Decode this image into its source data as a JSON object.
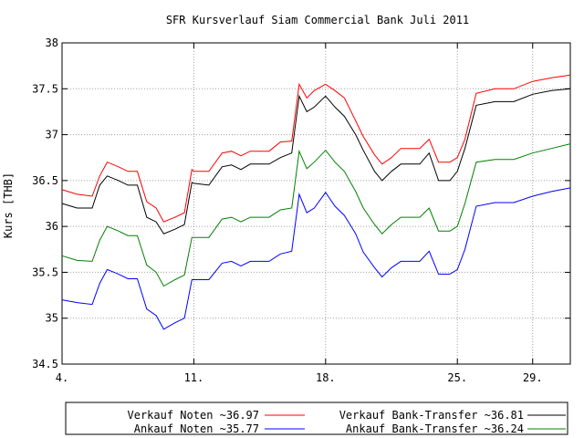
{
  "chart_data": {
    "type": "line",
    "title": "SFR Kursverlauf Siam Commercial Bank Juli 2011",
    "xlabel": "",
    "ylabel": "Kurs [THB]",
    "ylim": [
      34.5,
      38
    ],
    "y_ticks": [
      34.5,
      35,
      35.5,
      36,
      36.5,
      37,
      37.5,
      38
    ],
    "y_tick_labels": [
      "34.5",
      "35",
      "35.5",
      "36",
      "36.5",
      "37",
      "37.5",
      "38"
    ],
    "xlim": [
      4,
      31
    ],
    "x_ticks": [
      4,
      11,
      18,
      25,
      29
    ],
    "x_tick_labels": [
      "4.",
      "11.",
      "18.",
      "25.",
      "29."
    ],
    "grid": true,
    "legend_position": "bottom",
    "series": [
      {
        "name": "Verkauf Noten ~36.97",
        "color": "#ff0000",
        "x": [
          4,
          4.8,
          5.6,
          6,
          6.4,
          7,
          7.5,
          8,
          8.5,
          9,
          9.4,
          10,
          10.5,
          10.9,
          11,
          11.8,
          12.5,
          13,
          13.5,
          14,
          15,
          15.6,
          16.2,
          16.6,
          17,
          17.4,
          18,
          18.5,
          19,
          19.6,
          20,
          20.6,
          21,
          21.5,
          22,
          23,
          23.5,
          24,
          24.6,
          25,
          25.4,
          26,
          27,
          28,
          29,
          30,
          31
        ],
        "y": [
          36.4,
          36.35,
          36.33,
          36.55,
          36.7,
          36.65,
          36.6,
          36.6,
          36.27,
          36.2,
          36.05,
          36.1,
          36.15,
          36.62,
          36.6,
          36.6,
          36.8,
          36.82,
          36.77,
          36.82,
          36.82,
          36.92,
          36.93,
          37.55,
          37.4,
          37.48,
          37.55,
          37.48,
          37.4,
          37.15,
          36.98,
          36.78,
          36.68,
          36.75,
          36.85,
          36.85,
          36.95,
          36.7,
          36.7,
          36.75,
          36.95,
          37.45,
          37.5,
          37.5,
          37.58,
          37.62,
          37.65
        ]
      },
      {
        "name": "Verkauf Bank-Transfer ~36.81",
        "color": "#000000",
        "x": [
          4,
          4.8,
          5.6,
          6,
          6.4,
          7,
          7.5,
          8,
          8.5,
          9,
          9.4,
          10,
          10.5,
          10.9,
          11,
          11.8,
          12.5,
          13,
          13.5,
          14,
          15,
          15.6,
          16.2,
          16.6,
          17,
          17.4,
          18,
          18.5,
          19,
          19.6,
          20,
          20.6,
          21,
          21.5,
          22,
          23,
          23.5,
          24,
          24.6,
          25,
          25.4,
          26,
          27,
          28,
          29,
          30,
          31
        ],
        "y": [
          36.25,
          36.2,
          36.2,
          36.45,
          36.55,
          36.5,
          36.45,
          36.45,
          36.1,
          36.05,
          35.92,
          35.97,
          36.02,
          36.48,
          36.47,
          36.45,
          36.65,
          36.67,
          36.62,
          36.68,
          36.68,
          36.75,
          36.8,
          37.42,
          37.25,
          37.3,
          37.42,
          37.3,
          37.2,
          37.0,
          36.83,
          36.6,
          36.5,
          36.6,
          36.68,
          36.68,
          36.8,
          36.5,
          36.5,
          36.6,
          36.85,
          37.32,
          37.36,
          37.36,
          37.44,
          37.48,
          37.5
        ]
      },
      {
        "name": "Ankauf Noten ~35.77",
        "color": "#0000ff",
        "x": [
          4,
          4.8,
          5.6,
          6,
          6.4,
          7,
          7.5,
          8,
          8.5,
          9,
          9.4,
          10,
          10.5,
          10.9,
          11,
          11.8,
          12.5,
          13,
          13.5,
          14,
          15,
          15.6,
          16.2,
          16.6,
          17,
          17.4,
          18,
          18.5,
          19,
          19.6,
          20,
          20.6,
          21,
          21.5,
          22,
          23,
          23.5,
          24,
          24.6,
          25,
          25.4,
          26,
          27,
          28,
          29,
          30,
          31
        ],
        "y": [
          35.2,
          35.17,
          35.15,
          35.38,
          35.53,
          35.48,
          35.43,
          35.43,
          35.1,
          35.03,
          34.88,
          34.95,
          35.0,
          35.42,
          35.42,
          35.42,
          35.6,
          35.62,
          35.57,
          35.62,
          35.62,
          35.7,
          35.73,
          36.35,
          36.15,
          36.2,
          36.37,
          36.22,
          36.12,
          35.92,
          35.72,
          35.55,
          35.45,
          35.55,
          35.62,
          35.62,
          35.73,
          35.48,
          35.48,
          35.53,
          35.75,
          36.22,
          36.26,
          36.26,
          36.33,
          36.38,
          36.42
        ]
      },
      {
        "name": "Ankauf Bank-Transfer ~36.24",
        "color": "#008000",
        "x": [
          4,
          4.8,
          5.6,
          6,
          6.4,
          7,
          7.5,
          8,
          8.5,
          9,
          9.4,
          10,
          10.5,
          10.9,
          11,
          11.8,
          12.5,
          13,
          13.5,
          14,
          15,
          15.6,
          16.2,
          16.6,
          17,
          17.4,
          18,
          18.5,
          19,
          19.6,
          20,
          20.6,
          21,
          21.5,
          22,
          23,
          23.5,
          24,
          24.6,
          25,
          25.4,
          26,
          27,
          28,
          29,
          30,
          31
        ],
        "y": [
          35.68,
          35.63,
          35.62,
          35.85,
          36.0,
          35.95,
          35.9,
          35.9,
          35.58,
          35.5,
          35.35,
          35.42,
          35.47,
          35.88,
          35.88,
          35.88,
          36.08,
          36.1,
          36.05,
          36.1,
          36.1,
          36.18,
          36.2,
          36.82,
          36.63,
          36.7,
          36.83,
          36.7,
          36.6,
          36.38,
          36.2,
          36.02,
          35.92,
          36.02,
          36.1,
          36.1,
          36.2,
          35.95,
          35.95,
          36.0,
          36.25,
          36.7,
          36.73,
          36.73,
          36.8,
          36.85,
          36.9
        ]
      }
    ]
  }
}
